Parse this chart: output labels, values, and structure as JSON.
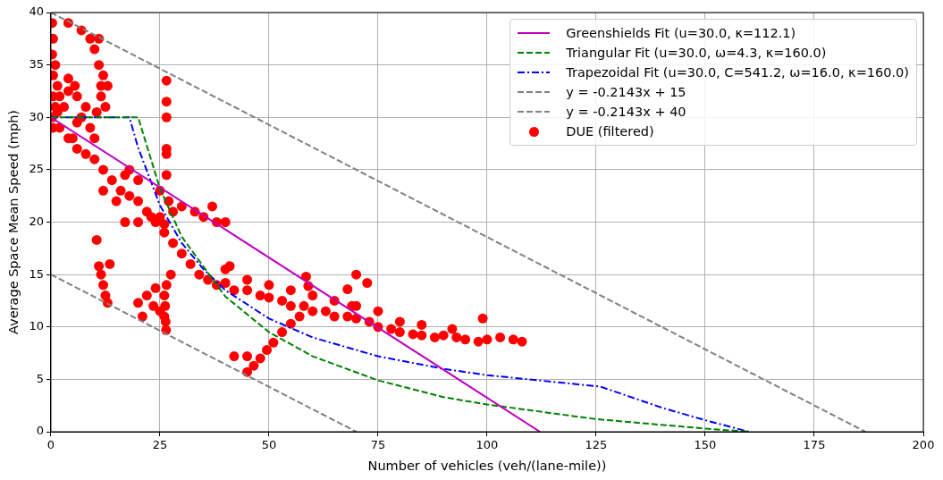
{
  "chart_data": {
    "type": "scatter",
    "xlabel": "Number of vehicles (veh/(lane-mile))",
    "ylabel": "Average Space Mean Speed (mph)",
    "xlim": [
      0,
      200
    ],
    "ylim": [
      0,
      40
    ],
    "xticks": [
      0,
      25,
      50,
      75,
      100,
      125,
      150,
      175,
      200
    ],
    "yticks": [
      0,
      5,
      10,
      15,
      20,
      25,
      30,
      35,
      40
    ],
    "grid": true,
    "legend": "top right",
    "series": [
      {
        "name": "Greenshields Fit (u=30.0, κ=112.1)",
        "type": "line",
        "color": "#bf00bf",
        "line_style": "solid",
        "x": [
          0,
          112.1
        ],
        "values": [
          30,
          0
        ]
      },
      {
        "name": "Triangular Fit (u=30.0, ω=4.3, κ=160.0)",
        "type": "line",
        "color": "#008000",
        "line_style": "dashed",
        "x": [
          0,
          20,
          25,
          30,
          40,
          50,
          60,
          75,
          90,
          100,
          125,
          150,
          160
        ],
        "values": [
          30,
          30,
          23.2,
          18.6,
          12.9,
          9.5,
          7.2,
          4.9,
          3.3,
          2.6,
          1.2,
          0.3,
          0
        ]
      },
      {
        "name": "Trapezoidal Fit (u=30.0, C=541.2, ω=16.0, κ=160.0)",
        "type": "line",
        "color": "#0000ff",
        "line_style": "dashdot",
        "x": [
          0,
          18,
          20,
          25,
          30,
          35,
          40,
          50,
          60,
          75,
          90,
          100,
          126,
          140,
          150,
          160
        ],
        "values": [
          30,
          30,
          27.1,
          21.6,
          18,
          15.5,
          13.5,
          10.8,
          9,
          7.2,
          6,
          5.4,
          4.3,
          2.3,
          1.1,
          0
        ]
      },
      {
        "name": "y = -0.2143x + 15",
        "type": "line",
        "color": "#808080",
        "line_style": "dashed",
        "x": [
          0,
          70
        ],
        "values": [
          15,
          0
        ]
      },
      {
        "name": "y = -0.2143x + 40",
        "type": "line",
        "color": "#808080",
        "line_style": "dashed",
        "x": [
          0,
          186.7
        ],
        "values": [
          40,
          0
        ]
      },
      {
        "name": "DUE (filtered)",
        "type": "scatter",
        "color": "#ff0000",
        "marker": "circle",
        "x": [
          0.3,
          0.5,
          0.3,
          1,
          0.5,
          1.5,
          0.5,
          1,
          0.3,
          0.5,
          2,
          1.5,
          4,
          7,
          9,
          11,
          10,
          11,
          12,
          11.5,
          13,
          11.5,
          12.5,
          10.5,
          4,
          5.5,
          6,
          4,
          3,
          6,
          8,
          9,
          10,
          7,
          5,
          2,
          4,
          6,
          8,
          10,
          12,
          14,
          16,
          18,
          20,
          22,
          24,
          26,
          28,
          30,
          32,
          34,
          36,
          38,
          40,
          42,
          45,
          48,
          50,
          53,
          55,
          58,
          60,
          63,
          65,
          68,
          70,
          73,
          75,
          78,
          80,
          83,
          85,
          88,
          90,
          93,
          95,
          98,
          100,
          103,
          106,
          108,
          40,
          45,
          50,
          55,
          60,
          65,
          70,
          75,
          80,
          85,
          12,
          15,
          17,
          18,
          20,
          25,
          27,
          17,
          20,
          23,
          25,
          28,
          30,
          33,
          35,
          38,
          40,
          37,
          26,
          26.5,
          26.5,
          26.5,
          26.5,
          26.5,
          26.5,
          10.5,
          11,
          11.5,
          12,
          12.5,
          13,
          13.5,
          26.5,
          26,
          26.2,
          26,
          26.3,
          26.4,
          27.5,
          22,
          20,
          21,
          23.5,
          25,
          24,
          45,
          46.5,
          48,
          49.5,
          51,
          53,
          55,
          57,
          42,
          45,
          58.5,
          59,
          70,
          72.5,
          68,
          69,
          99,
          92,
          41
        ],
        "values": [
          39,
          37.5,
          36,
          35,
          34,
          33,
          32,
          31,
          30,
          29,
          32,
          30.5,
          39,
          38.3,
          37.5,
          37.5,
          36.5,
          35,
          34,
          33,
          33,
          32,
          31,
          30.5,
          33.7,
          33,
          32,
          32.5,
          31,
          29.5,
          31,
          29,
          28,
          30,
          28,
          29,
          28,
          27,
          26.5,
          26,
          25,
          24,
          23,
          22.5,
          22,
          21,
          20,
          19,
          18,
          17,
          16,
          15,
          14.5,
          14,
          14.2,
          13.5,
          13.5,
          13,
          12.8,
          12.5,
          12,
          12,
          11.5,
          11.5,
          11,
          11,
          10.8,
          10.5,
          10,
          9.8,
          9.5,
          9.3,
          9.2,
          9,
          9.2,
          9,
          8.8,
          8.6,
          8.8,
          9,
          8.8,
          8.6,
          15.5,
          14.5,
          14,
          13.5,
          13,
          12.5,
          12,
          11.5,
          10.5,
          10.2,
          23,
          22,
          24.5,
          25,
          24,
          23,
          22,
          20,
          20,
          20.5,
          20.5,
          21,
          21.5,
          21,
          20.5,
          20,
          20,
          21.5,
          19.8,
          33.5,
          31.5,
          30,
          27,
          26.5,
          24.5,
          18.3,
          15.8,
          15,
          14,
          13,
          12.3,
          16,
          14,
          13,
          12,
          11,
          10.5,
          9.7,
          15,
          13,
          12.3,
          11,
          12,
          11.5,
          13.7,
          5.7,
          6.3,
          7,
          7.8,
          8.5,
          9.5,
          10.3,
          11,
          7.2,
          7.2,
          14.8,
          13.9,
          15,
          14.2,
          13.6,
          12,
          10.8,
          9.8,
          15.8
        ]
      }
    ]
  }
}
